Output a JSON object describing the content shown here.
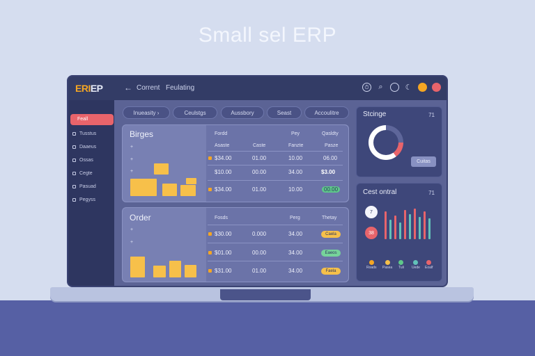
{
  "hero": {
    "title": "Small sel ERP"
  },
  "app": {
    "logo_a": "ERI",
    "logo_b": "EP",
    "nav": [
      "Corrent",
      "Feulating"
    ]
  },
  "sidebar": {
    "active": "Feall",
    "items": [
      "Tusstus",
      "Daaeus",
      "Ossas",
      "Cegte",
      "Pasuad",
      "Pegyss"
    ]
  },
  "filters": [
    "Inueasity",
    "Ceulstgs",
    "Aussbory",
    "Seast",
    "Accoulitre"
  ],
  "budgets": {
    "title": "Birges",
    "marks": [
      "+",
      "+",
      "+"
    ],
    "headers": [
      "Fordd",
      "Pey",
      "Qasldty",
      "Asaste",
      "Caste",
      "Fanzte",
      "Pasze"
    ],
    "rows": [
      [
        "$34.00",
        "01.00",
        "10.00",
        "06.00"
      ],
      [
        "$10.00",
        "00.00",
        "34.00",
        "$3.00"
      ],
      [
        "$34.00",
        "01.00",
        "10.00",
        "00.00"
      ]
    ]
  },
  "orders": {
    "title": "Order",
    "marks": [
      "+",
      "+"
    ],
    "headers": [
      "Fosds",
      "Perg",
      "Thetay"
    ],
    "rows": [
      [
        "$30.00",
        "0.000",
        "34.00",
        "Caela"
      ],
      [
        "$01.00",
        "00.00",
        "34.00",
        "Eaeos"
      ],
      [
        "$31.00",
        "01.00",
        "34.00",
        "Faela"
      ]
    ]
  },
  "strange": {
    "title": "Stcinge",
    "count": "71",
    "button": "Cuitas"
  },
  "cost": {
    "title": "Cest ontral",
    "count": "71",
    "circle_white": "7",
    "circle_red": "38",
    "legend": [
      "Roads",
      "Pasea",
      "Tuli",
      "Uede",
      "Eoalf"
    ]
  },
  "colors": {
    "accent": "#f5a623",
    "danger": "#e8646b",
    "success": "#5ec98a",
    "teal": "#62c2b8",
    "gold_bar": "#f7c04a"
  },
  "icons": [
    "timer-icon",
    "search-icon",
    "circle-icon",
    "moon-icon",
    "user-avatar",
    "notification-avatar"
  ]
}
